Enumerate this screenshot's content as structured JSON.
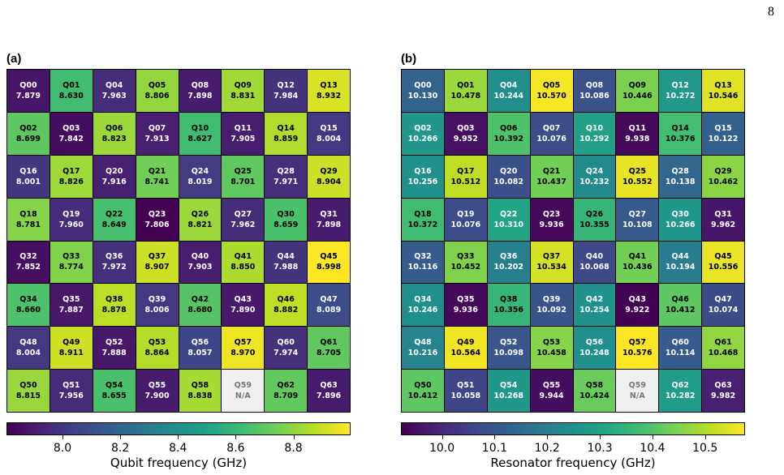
{
  "page_number": "8",
  "chart_data": [
    {
      "type": "heatmap",
      "panel_label": "(a)",
      "colorbar_label": "Qubit frequency (GHz)",
      "colorbar_range": [
        7.806,
        8.998
      ],
      "colorbar_ticks": [
        "8.0",
        "8.2",
        "8.4",
        "8.6",
        "8.8"
      ],
      "colormap": "viridis",
      "missing_color": "#f0f0f0",
      "rows": [
        [
          [
            "Q00",
            "7.879"
          ],
          [
            "Q01",
            "8.630"
          ],
          [
            "Q04",
            "7.963"
          ],
          [
            "Q05",
            "8.806"
          ],
          [
            "Q08",
            "7.898"
          ],
          [
            "Q09",
            "8.831"
          ],
          [
            "Q12",
            "7.984"
          ],
          [
            "Q13",
            "8.932"
          ]
        ],
        [
          [
            "Q02",
            "8.699"
          ],
          [
            "Q03",
            "7.842"
          ],
          [
            "Q06",
            "8.823"
          ],
          [
            "Q07",
            "7.913"
          ],
          [
            "Q10",
            "8.627"
          ],
          [
            "Q11",
            "7.905"
          ],
          [
            "Q14",
            "8.859"
          ],
          [
            "Q15",
            "8.004"
          ]
        ],
        [
          [
            "Q16",
            "8.001"
          ],
          [
            "Q17",
            "8.826"
          ],
          [
            "Q20",
            "7.916"
          ],
          [
            "Q21",
            "8.741"
          ],
          [
            "Q24",
            "8.019"
          ],
          [
            "Q25",
            "8.701"
          ],
          [
            "Q28",
            "7.971"
          ],
          [
            "Q29",
            "8.904"
          ]
        ],
        [
          [
            "Q18",
            "8.781"
          ],
          [
            "Q19",
            "7.960"
          ],
          [
            "Q22",
            "8.649"
          ],
          [
            "Q23",
            "7.806"
          ],
          [
            "Q26",
            "8.821"
          ],
          [
            "Q27",
            "7.962"
          ],
          [
            "Q30",
            "8.659"
          ],
          [
            "Q31",
            "7.898"
          ]
        ],
        [
          [
            "Q32",
            "7.852"
          ],
          [
            "Q33",
            "8.774"
          ],
          [
            "Q36",
            "7.972"
          ],
          [
            "Q37",
            "8.907"
          ],
          [
            "Q40",
            "7.903"
          ],
          [
            "Q41",
            "8.850"
          ],
          [
            "Q44",
            "7.988"
          ],
          [
            "Q45",
            "8.998"
          ]
        ],
        [
          [
            "Q34",
            "8.660"
          ],
          [
            "Q35",
            "7.887"
          ],
          [
            "Q38",
            "8.878"
          ],
          [
            "Q39",
            "8.006"
          ],
          [
            "Q42",
            "8.680"
          ],
          [
            "Q43",
            "7.890"
          ],
          [
            "Q46",
            "8.882"
          ],
          [
            "Q47",
            "8.089"
          ]
        ],
        [
          [
            "Q48",
            "8.004"
          ],
          [
            "Q49",
            "8.911"
          ],
          [
            "Q52",
            "7.888"
          ],
          [
            "Q53",
            "8.864"
          ],
          [
            "Q56",
            "8.057"
          ],
          [
            "Q57",
            "8.970"
          ],
          [
            "Q60",
            "7.974"
          ],
          [
            "Q61",
            "8.705"
          ]
        ],
        [
          [
            "Q50",
            "8.815"
          ],
          [
            "Q51",
            "7.956"
          ],
          [
            "Q54",
            "8.655"
          ],
          [
            "Q55",
            "7.900"
          ],
          [
            "Q58",
            "8.838"
          ],
          [
            "Q59",
            "N/A"
          ],
          [
            "Q62",
            "8.709"
          ],
          [
            "Q63",
            "7.896"
          ]
        ]
      ]
    },
    {
      "type": "heatmap",
      "panel_label": "(b)",
      "colorbar_label": "Resonator frequency (GHz)",
      "colorbar_range": [
        9.922,
        10.576
      ],
      "colorbar_ticks": [
        "10.0",
        "10.1",
        "10.2",
        "10.3",
        "10.4",
        "10.5"
      ],
      "colormap": "viridis",
      "missing_color": "#f0f0f0",
      "rows": [
        [
          [
            "Q00",
            "10.130"
          ],
          [
            "Q01",
            "10.478"
          ],
          [
            "Q04",
            "10.244"
          ],
          [
            "Q05",
            "10.570"
          ],
          [
            "Q08",
            "10.086"
          ],
          [
            "Q09",
            "10.446"
          ],
          [
            "Q12",
            "10.272"
          ],
          [
            "Q13",
            "10.546"
          ]
        ],
        [
          [
            "Q02",
            "10.266"
          ],
          [
            "Q03",
            "9.952"
          ],
          [
            "Q06",
            "10.392"
          ],
          [
            "Q07",
            "10.076"
          ],
          [
            "Q10",
            "10.292"
          ],
          [
            "Q11",
            "9.938"
          ],
          [
            "Q14",
            "10.376"
          ],
          [
            "Q15",
            "10.122"
          ]
        ],
        [
          [
            "Q16",
            "10.256"
          ],
          [
            "Q17",
            "10.512"
          ],
          [
            "Q20",
            "10.082"
          ],
          [
            "Q21",
            "10.437"
          ],
          [
            "Q24",
            "10.232"
          ],
          [
            "Q25",
            "10.552"
          ],
          [
            "Q28",
            "10.138"
          ],
          [
            "Q29",
            "10.462"
          ]
        ],
        [
          [
            "Q18",
            "10.372"
          ],
          [
            "Q19",
            "10.076"
          ],
          [
            "Q22",
            "10.310"
          ],
          [
            "Q23",
            "9.936"
          ],
          [
            "Q26",
            "10.355"
          ],
          [
            "Q27",
            "10.108"
          ],
          [
            "Q30",
            "10.266"
          ],
          [
            "Q31",
            "9.962"
          ]
        ],
        [
          [
            "Q32",
            "10.116"
          ],
          [
            "Q33",
            "10.452"
          ],
          [
            "Q36",
            "10.202"
          ],
          [
            "Q37",
            "10.534"
          ],
          [
            "Q40",
            "10.068"
          ],
          [
            "Q41",
            "10.436"
          ],
          [
            "Q44",
            "10.194"
          ],
          [
            "Q45",
            "10.556"
          ]
        ],
        [
          [
            "Q34",
            "10.246"
          ],
          [
            "Q35",
            "9.936"
          ],
          [
            "Q38",
            "10.356"
          ],
          [
            "Q39",
            "10.092"
          ],
          [
            "Q42",
            "10.254"
          ],
          [
            "Q43",
            "9.922"
          ],
          [
            "Q46",
            "10.412"
          ],
          [
            "Q47",
            "10.074"
          ]
        ],
        [
          [
            "Q48",
            "10.216"
          ],
          [
            "Q49",
            "10.564"
          ],
          [
            "Q52",
            "10.098"
          ],
          [
            "Q53",
            "10.458"
          ],
          [
            "Q56",
            "10.248"
          ],
          [
            "Q57",
            "10.576"
          ],
          [
            "Q60",
            "10.114"
          ],
          [
            "Q61",
            "10.468"
          ]
        ],
        [
          [
            "Q50",
            "10.412"
          ],
          [
            "Q51",
            "10.058"
          ],
          [
            "Q54",
            "10.268"
          ],
          [
            "Q55",
            "9.944"
          ],
          [
            "Q58",
            "10.424"
          ],
          [
            "Q59",
            "N/A"
          ],
          [
            "Q62",
            "10.282"
          ],
          [
            "Q63",
            "9.982"
          ]
        ]
      ]
    }
  ]
}
